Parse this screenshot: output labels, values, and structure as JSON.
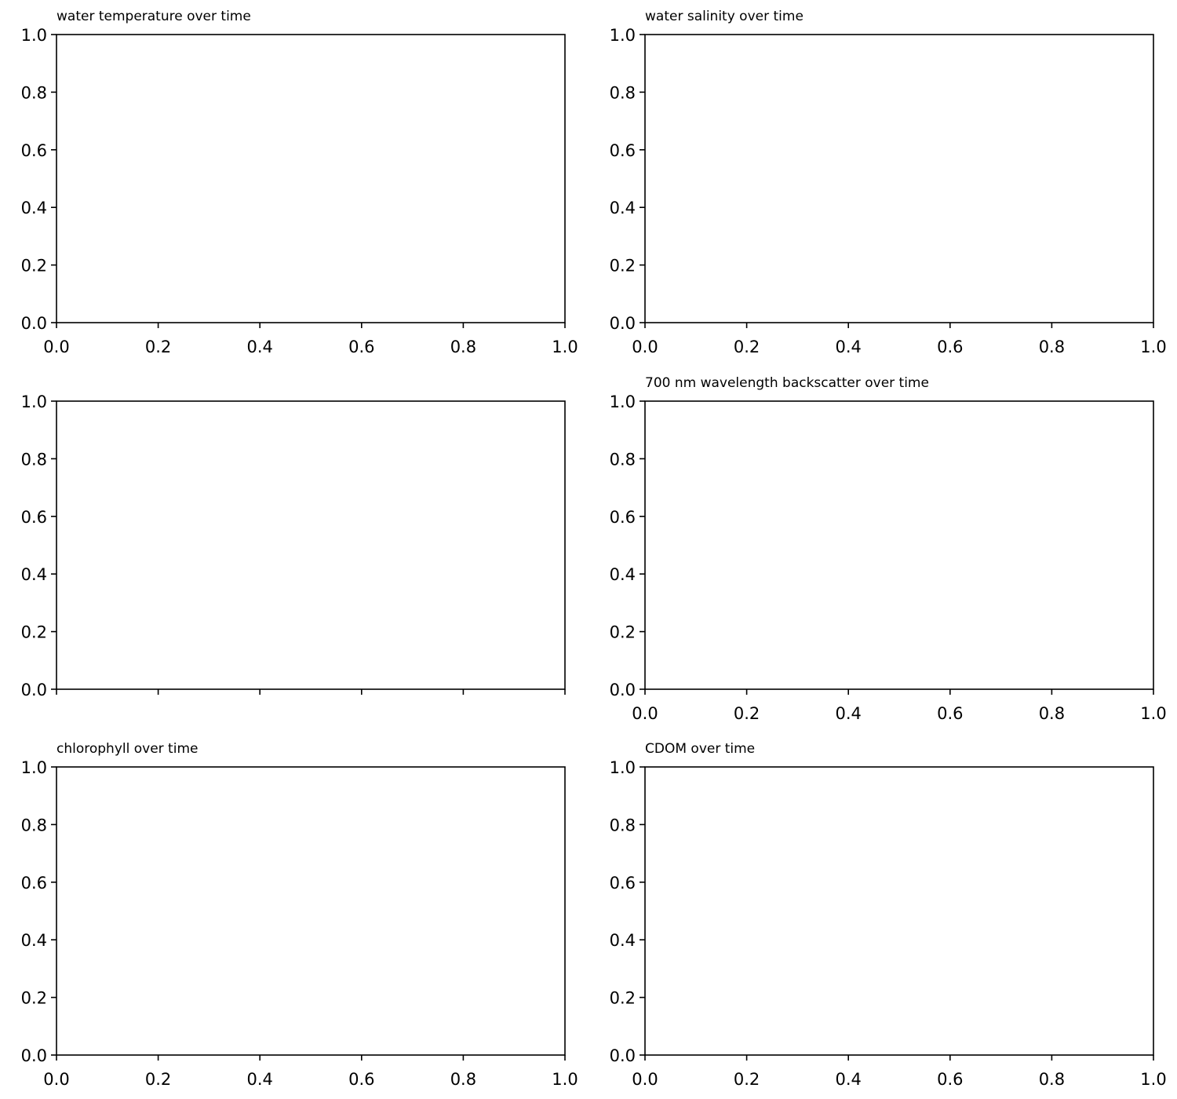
{
  "chart_data": [
    {
      "type": "line",
      "title": "water temperature over time",
      "xlabel": "",
      "ylabel": "",
      "xlim": [
        0,
        1
      ],
      "ylim": [
        0,
        1
      ],
      "xticks": [
        "0.0",
        "0.2",
        "0.4",
        "0.6",
        "0.8",
        "1.0"
      ],
      "yticks": [
        "0.0",
        "0.2",
        "0.4",
        "0.6",
        "0.8",
        "1.0"
      ],
      "show_xtick_labels": true,
      "series": [],
      "grid": false
    },
    {
      "type": "line",
      "title": "water salinity over time",
      "xlabel": "",
      "ylabel": "",
      "xlim": [
        0,
        1
      ],
      "ylim": [
        0,
        1
      ],
      "xticks": [
        "0.0",
        "0.2",
        "0.4",
        "0.6",
        "0.8",
        "1.0"
      ],
      "yticks": [
        "0.0",
        "0.2",
        "0.4",
        "0.6",
        "0.8",
        "1.0"
      ],
      "show_xtick_labels": true,
      "series": [],
      "grid": false
    },
    {
      "type": "line",
      "title": "",
      "xlabel": "",
      "ylabel": "",
      "xlim": [
        0,
        1
      ],
      "ylim": [
        0,
        1
      ],
      "xticks": [
        "0.0",
        "0.2",
        "0.4",
        "0.6",
        "0.8",
        "1.0"
      ],
      "yticks": [
        "0.0",
        "0.2",
        "0.4",
        "0.6",
        "0.8",
        "1.0"
      ],
      "show_xtick_labels": false,
      "series": [],
      "grid": false
    },
    {
      "type": "line",
      "title": "700 nm wavelength backscatter over time",
      "xlabel": "",
      "ylabel": "",
      "xlim": [
        0,
        1
      ],
      "ylim": [
        0,
        1
      ],
      "xticks": [
        "0.0",
        "0.2",
        "0.4",
        "0.6",
        "0.8",
        "1.0"
      ],
      "yticks": [
        "0.0",
        "0.2",
        "0.4",
        "0.6",
        "0.8",
        "1.0"
      ],
      "show_xtick_labels": true,
      "series": [],
      "grid": false
    },
    {
      "type": "line",
      "title": "chlorophyll over time",
      "xlabel": "",
      "ylabel": "",
      "xlim": [
        0,
        1
      ],
      "ylim": [
        0,
        1
      ],
      "xticks": [
        "0.0",
        "0.2",
        "0.4",
        "0.6",
        "0.8",
        "1.0"
      ],
      "yticks": [
        "0.0",
        "0.2",
        "0.4",
        "0.6",
        "0.8",
        "1.0"
      ],
      "show_xtick_labels": true,
      "series": [],
      "grid": false
    },
    {
      "type": "line",
      "title": "CDOM over time",
      "xlabel": "",
      "ylabel": "",
      "xlim": [
        0,
        1
      ],
      "ylim": [
        0,
        1
      ],
      "xticks": [
        "0.0",
        "0.2",
        "0.4",
        "0.6",
        "0.8",
        "1.0"
      ],
      "yticks": [
        "0.0",
        "0.2",
        "0.4",
        "0.6",
        "0.8",
        "1.0"
      ],
      "show_xtick_labels": true,
      "series": [],
      "grid": false
    }
  ]
}
